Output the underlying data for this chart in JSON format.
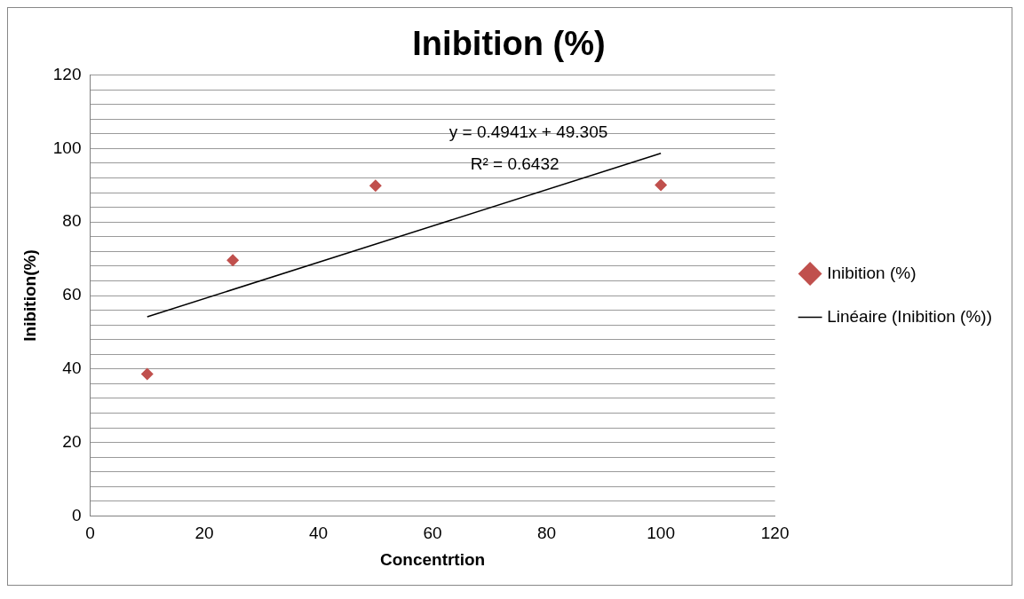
{
  "chart_data": {
    "type": "scatter",
    "title": "Inibition (%)",
    "xlabel": "Concentrtion",
    "ylabel": "Inibition(%)",
    "xlim": [
      0,
      120
    ],
    "xticks": [
      0,
      20,
      40,
      60,
      80,
      100,
      120
    ],
    "ylim": [
      0,
      120
    ],
    "yticks": [
      0,
      {
        "value": 4,
        "label": null
      },
      {
        "value": 8,
        "label": null
      },
      {
        "value": 12,
        "label": null
      },
      {
        "value": 16,
        "label": null
      },
      20,
      {
        "value": 24,
        "label": null
      },
      {
        "value": 28,
        "label": null
      },
      {
        "value": 32,
        "label": null
      },
      {
        "value": 36,
        "label": null
      },
      40,
      {
        "value": 44,
        "label": null
      },
      {
        "value": 48,
        "label": null
      },
      {
        "value": 52,
        "label": null
      },
      {
        "value": 56,
        "label": null
      },
      60,
      {
        "value": 64,
        "label": null
      },
      {
        "value": 68,
        "label": null
      },
      {
        "value": 72,
        "label": null
      },
      {
        "value": 76,
        "label": null
      },
      80,
      {
        "value": 84,
        "label": null
      },
      {
        "value": 88,
        "label": null
      },
      {
        "value": 92,
        "label": null
      },
      {
        "value": 96,
        "label": null
      },
      100,
      {
        "value": 104,
        "label": null
      },
      {
        "value": 108,
        "label": null
      },
      {
        "value": 112,
        "label": null
      },
      {
        "value": 116,
        "label": null
      },
      120
    ],
    "grid": "y",
    "legend": "right",
    "annotations": [
      "y = 0.4941x + 49.305",
      "R² = 0.6432"
    ],
    "series": [
      {
        "name": "Inibition (%)",
        "type": "scatter",
        "marker": "diamond",
        "color": "#c0504d",
        "x": [
          10,
          25,
          50,
          100
        ],
        "values": [
          38.6,
          69.6,
          89.9,
          90.1
        ]
      },
      {
        "name": "Linéaire (Inibition (%))",
        "type": "line",
        "marker": "none",
        "line_style": "solid",
        "color": "#000000",
        "x": [
          10,
          100
        ],
        "values": [
          54.2,
          98.7
        ]
      }
    ]
  }
}
